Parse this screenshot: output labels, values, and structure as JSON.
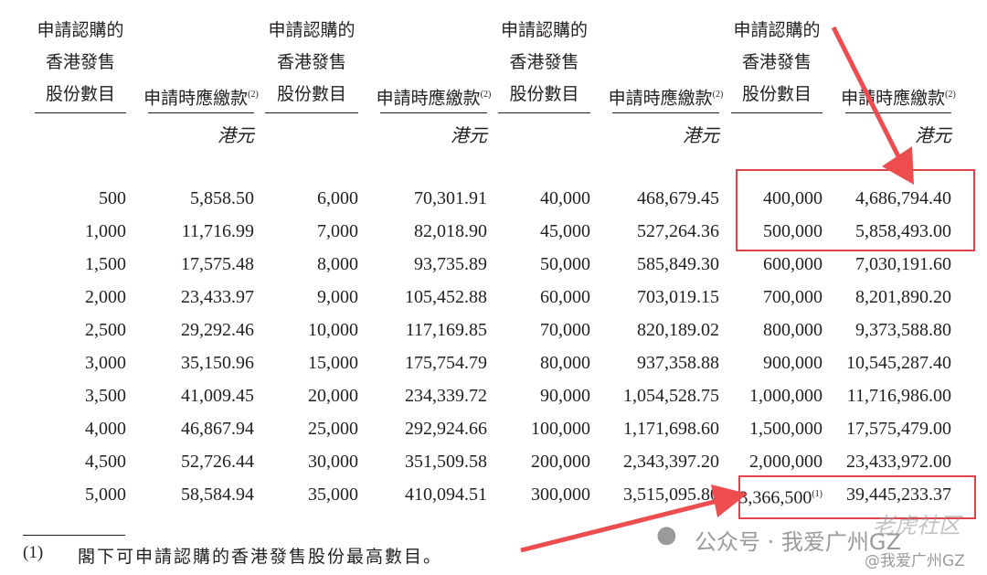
{
  "headers": [
    {
      "shares": [
        "申請認購的",
        "香港發售",
        "股份數目"
      ],
      "amount": "申請時應繳款",
      "note": "(2)",
      "unit": "港元"
    },
    {
      "shares": [
        "申請認購的",
        "香港發售",
        "股份數目"
      ],
      "amount": "申請時應繳款",
      "note": "(2)",
      "unit": "港元"
    },
    {
      "shares": [
        "申請認購的",
        "香港發售",
        "股份數目"
      ],
      "amount": "申請時應繳款",
      "note": "(2)",
      "unit": "港元"
    },
    {
      "shares": [
        "申請認購的",
        "香港發售",
        "股份數目"
      ],
      "amount": "申請時應繳款",
      "note": "(2)",
      "unit": "港元"
    }
  ],
  "rows": [
    [
      "500",
      "5,858.50",
      "6,000",
      "70,301.91",
      "40,000",
      "468,679.45",
      "400,000",
      "4,686,794.40"
    ],
    [
      "1,000",
      "11,716.99",
      "7,000",
      "82,018.90",
      "45,000",
      "527,264.36",
      "500,000",
      "5,858,493.00"
    ],
    [
      "1,500",
      "17,575.48",
      "8,000",
      "93,735.89",
      "50,000",
      "585,849.30",
      "600,000",
      "7,030,191.60"
    ],
    [
      "2,000",
      "23,433.97",
      "9,000",
      "105,452.88",
      "60,000",
      "703,019.15",
      "700,000",
      "8,201,890.20"
    ],
    [
      "2,500",
      "29,292.46",
      "10,000",
      "117,169.85",
      "70,000",
      "820,189.02",
      "800,000",
      "9,373,588.80"
    ],
    [
      "3,000",
      "35,150.96",
      "15,000",
      "175,754.79",
      "80,000",
      "937,358.88",
      "900,000",
      "10,545,287.40"
    ],
    [
      "3,500",
      "41,009.45",
      "20,000",
      "234,339.72",
      "90,000",
      "1,054,528.75",
      "1,000,000",
      "11,716,986.00"
    ],
    [
      "4,000",
      "46,867.94",
      "25,000",
      "292,924.66",
      "100,000",
      "1,171,698.60",
      "1,500,000",
      "17,575,479.00"
    ],
    [
      "4,500",
      "52,726.44",
      "30,000",
      "351,509.58",
      "200,000",
      "2,343,397.20",
      "2,000,000",
      "23,433,972.00"
    ],
    [
      "5,000",
      "58,584.94",
      "35,000",
      "410,094.51",
      "300,000",
      "3,515,095.80",
      "3,366,500",
      "39,445,233.37"
    ]
  ],
  "last_row_note": "(1)",
  "footnote": {
    "marker": "(1)",
    "text": "閣下可申請認購的香港發售股份最高數目。"
  },
  "watermark": {
    "logo_text": "老虎社区",
    "channel": "公众号 · 我爱广州GZ",
    "handle": "@我爱广州GZ"
  },
  "colors": {
    "highlight": "#e2434a",
    "text": "#231f20",
    "watermark": "#9a9a9a"
  }
}
